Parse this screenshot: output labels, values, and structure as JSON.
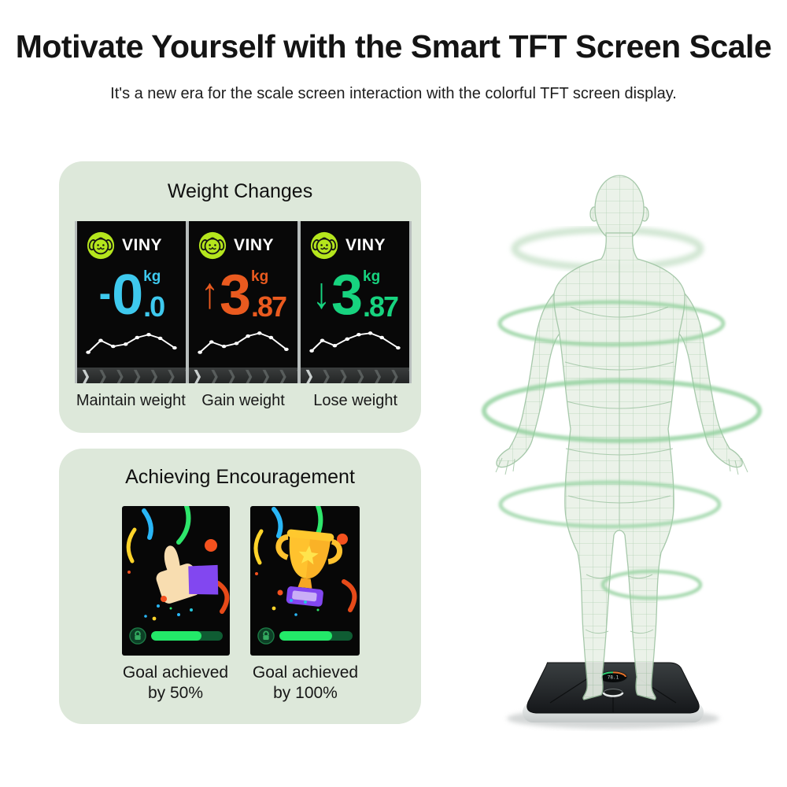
{
  "header": {
    "title": "Motivate Yourself with the Smart TFT Screen Scale",
    "subtitle": "It's a new era for the scale screen interaction with the colorful TFT screen display."
  },
  "weight_changes": {
    "title": "Weight Changes",
    "sparkline_color": "#ffffff",
    "chevron_count": 7,
    "screens": [
      {
        "brand": "VINY",
        "symbol": "-",
        "symbol_name": "minus",
        "integer": "0",
        "decimal": ".0",
        "unit": "kg",
        "accent_color": "#3ec9ee",
        "caption": "Maintain weight",
        "sparkline": [
          [
            5,
            36
          ],
          [
            18,
            20
          ],
          [
            31,
            28
          ],
          [
            44,
            25
          ],
          [
            56,
            16
          ],
          [
            68,
            12
          ],
          [
            80,
            17
          ],
          [
            95,
            30
          ]
        ]
      },
      {
        "brand": "VINY",
        "symbol": "↑",
        "symbol_name": "up-arrow",
        "integer": "3",
        "decimal": ".87",
        "unit": "kg",
        "accent_color": "#e95a1f",
        "caption": "Gain weight",
        "sparkline": [
          [
            5,
            36
          ],
          [
            17,
            22
          ],
          [
            30,
            28
          ],
          [
            43,
            24
          ],
          [
            55,
            14
          ],
          [
            67,
            10
          ],
          [
            79,
            16
          ],
          [
            95,
            32
          ]
        ]
      },
      {
        "brand": "VINY",
        "symbol": "↓",
        "symbol_name": "down-arrow",
        "integer": "3",
        "decimal": ".87",
        "unit": "kg",
        "accent_color": "#17d37f",
        "caption": "Lose weight",
        "sparkline": [
          [
            5,
            34
          ],
          [
            16,
            20
          ],
          [
            29,
            27
          ],
          [
            42,
            18
          ],
          [
            54,
            12
          ],
          [
            66,
            10
          ],
          [
            78,
            16
          ],
          [
            95,
            30
          ]
        ]
      }
    ]
  },
  "achievement": {
    "title": "Achieving Encouragement",
    "screens": [
      {
        "illustration": "thumbs-up",
        "caption_line1": "Goal achieved",
        "caption_line2": "by 50%",
        "progress_fill_percent": 70,
        "bar_color": "#23e969",
        "track_color": "#0f5c33"
      },
      {
        "illustration": "trophy",
        "caption_line1": "Goal achieved",
        "caption_line2": "by 100%",
        "progress_fill_percent": 72,
        "bar_color": "#23e969",
        "track_color": "#0f5c33"
      }
    ]
  },
  "body_scan": {
    "scale_display_value": "78.1"
  },
  "palette": {
    "panel_bg": "#dde8da",
    "screen_bg": "#080808",
    "avatar_green": "#b5e61d",
    "ring_green": "#93d19e",
    "figure_mesh": "#abcdad"
  }
}
